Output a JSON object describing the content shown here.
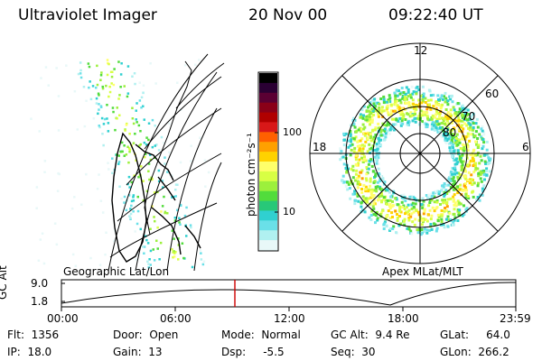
{
  "header": {
    "instrument": "Ultraviolet Imager",
    "date": "20 Nov 00",
    "time": "09:22:40 UT"
  },
  "colorbar": {
    "unit_label": "photon cm⁻²s⁻¹",
    "ticks": [
      "100",
      "10"
    ],
    "colors": [
      "#000000",
      "#2a0033",
      "#5a0033",
      "#8a0018",
      "#b00000",
      "#d81818",
      "#ff6000",
      "#ffa000",
      "#ffd200",
      "#ffff6a",
      "#d8ff44",
      "#9cf03c",
      "#52dc3c",
      "#28c878",
      "#30d0d0",
      "#6ae0e8",
      "#b0f0f0",
      "#e8f8f8"
    ]
  },
  "geo_map": {
    "label": "Geographic Lat/Lon"
  },
  "polar_plot": {
    "label": "Apex MLat/MLT",
    "mlt_labels": [
      "12",
      "18",
      "6"
    ],
    "mlat_labels": [
      "60",
      "70",
      "80"
    ]
  },
  "timeline": {
    "axis_label": "GC Alt",
    "y_ticks": [
      "9.0",
      "1.8"
    ],
    "x_ticks": [
      "00:00",
      "06:00",
      "12:00",
      "18:00",
      "23:59"
    ],
    "marker_color": "#cc0000"
  },
  "status": {
    "flt": "Flt:  1356",
    "ip": "IP:  18.0",
    "door": "Door:  Open",
    "gain": "Gain:  13",
    "mode": "Mode:  Normal",
    "dsp": "Dsp:     -5.5",
    "gc_alt": "GC Alt:  9.4 Re",
    "seq": "Seq:  30",
    "glat": "GLat:     64.0",
    "glon": "GLon:  266.2"
  }
}
